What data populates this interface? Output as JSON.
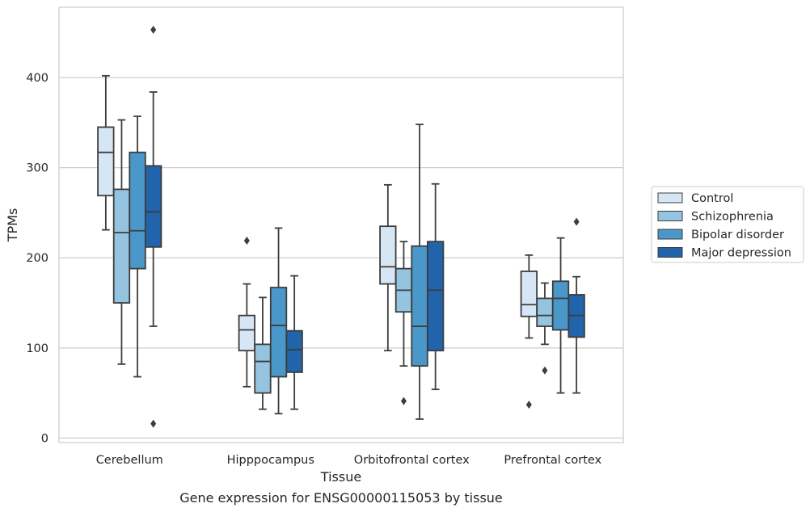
{
  "chart_data": {
    "type": "box",
    "xlabel": "Tissue",
    "ylabel": "TPMs",
    "caption": "Gene expression for ENSG00000115053 by tissue",
    "ylim": [
      -5,
      478
    ],
    "yticks": [
      0,
      100,
      200,
      300,
      400
    ],
    "grid": "horizontal",
    "legend_position": "right",
    "categories": [
      "Cerebellum",
      "Hipppocampus",
      "Orbitofrontal cortex",
      "Prefrontal cortex"
    ],
    "series": [
      {
        "name": "Control",
        "color": "#d6e6f4",
        "boxes": [
          {
            "whisker_low": 231,
            "q1": 269,
            "median": 317,
            "q3": 345,
            "whisker_high": 402,
            "outliers": []
          },
          {
            "whisker_low": 57,
            "q1": 97,
            "median": 120,
            "q3": 136,
            "whisker_high": 171,
            "outliers": [
              219
            ]
          },
          {
            "whisker_low": 97,
            "q1": 171,
            "median": 190,
            "q3": 235,
            "whisker_high": 281,
            "outliers": []
          },
          {
            "whisker_low": 111,
            "q1": 135,
            "median": 148,
            "q3": 185,
            "whisker_high": 203,
            "outliers": [
              37
            ]
          }
        ]
      },
      {
        "name": "Schizophrenia",
        "color": "#94c4df",
        "boxes": [
          {
            "whisker_low": 82,
            "q1": 150,
            "median": 228,
            "q3": 276,
            "whisker_high": 353,
            "outliers": []
          },
          {
            "whisker_low": 32,
            "q1": 50,
            "median": 85,
            "q3": 104,
            "whisker_high": 156,
            "outliers": []
          },
          {
            "whisker_low": 80,
            "q1": 140,
            "median": 164,
            "q3": 188,
            "whisker_high": 218,
            "outliers": [
              41
            ]
          },
          {
            "whisker_low": 104,
            "q1": 124,
            "median": 136,
            "q3": 155,
            "whisker_high": 172,
            "outliers": [
              75
            ]
          }
        ]
      },
      {
        "name": "Bipolar disorder",
        "color": "#4a98c9",
        "boxes": [
          {
            "whisker_low": 68,
            "q1": 188,
            "median": 230,
            "q3": 317,
            "whisker_high": 357,
            "outliers": []
          },
          {
            "whisker_low": 27,
            "q1": 68,
            "median": 125,
            "q3": 167,
            "whisker_high": 233,
            "outliers": []
          },
          {
            "whisker_low": 21,
            "q1": 80,
            "median": 124,
            "q3": 213,
            "whisker_high": 348,
            "outliers": []
          },
          {
            "whisker_low": 50,
            "q1": 120,
            "median": 155,
            "q3": 174,
            "whisker_high": 222,
            "outliers": []
          }
        ]
      },
      {
        "name": "Major depression",
        "color": "#2164ab",
        "boxes": [
          {
            "whisker_low": 124,
            "q1": 212,
            "median": 251,
            "q3": 302,
            "whisker_high": 384,
            "outliers": [
              16,
              453
            ]
          },
          {
            "whisker_low": 32,
            "q1": 73,
            "median": 98,
            "q3": 119,
            "whisker_high": 180,
            "outliers": []
          },
          {
            "whisker_low": 54,
            "q1": 97,
            "median": 164,
            "q3": 218,
            "whisker_high": 282,
            "outliers": []
          },
          {
            "whisker_low": 50,
            "q1": 112,
            "median": 136,
            "q3": 159,
            "whisker_high": 179,
            "outliers": [
              240
            ]
          }
        ]
      }
    ]
  }
}
